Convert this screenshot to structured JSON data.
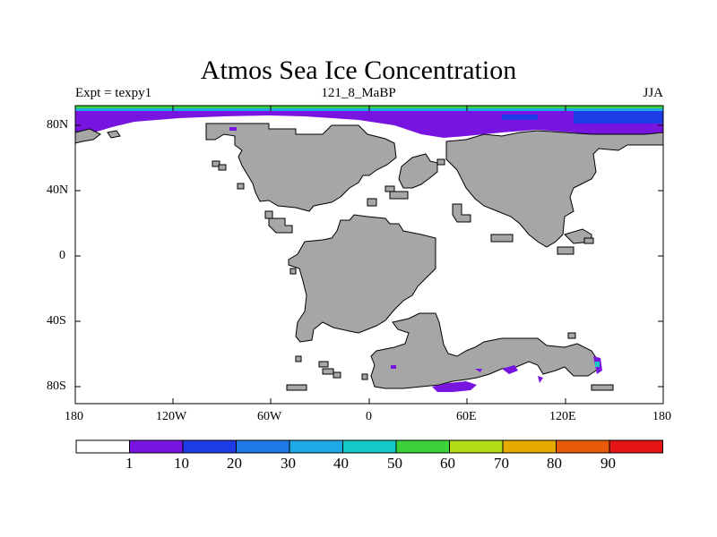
{
  "title": "Atmos Sea Ice Concentration",
  "left_string": "Expt = texpy1",
  "center_string": "121_8_MaBP",
  "right_string": "JJA",
  "colors": {
    "ocean": "#ffffff",
    "land": "#a6a6a6",
    "coast": "#000000",
    "ice_main": "#7814e0"
  },
  "axes": {
    "x_ticks": [
      "180",
      "120W",
      "60W",
      "0",
      "60E",
      "120E",
      "180"
    ],
    "y_ticks": [
      "80N",
      "40N",
      "0",
      "40S",
      "80S"
    ]
  },
  "colorbar": {
    "colors": [
      "#ffffff",
      "#7814e0",
      "#1e3ce6",
      "#1e78e6",
      "#1eaae6",
      "#14c8c8",
      "#3cd23c",
      "#b4dc14",
      "#e6aa00",
      "#e65a0a",
      "#e61414"
    ],
    "labels": [
      "1",
      "10",
      "20",
      "30",
      "40",
      "50",
      "60",
      "70",
      "80",
      "90"
    ]
  }
}
